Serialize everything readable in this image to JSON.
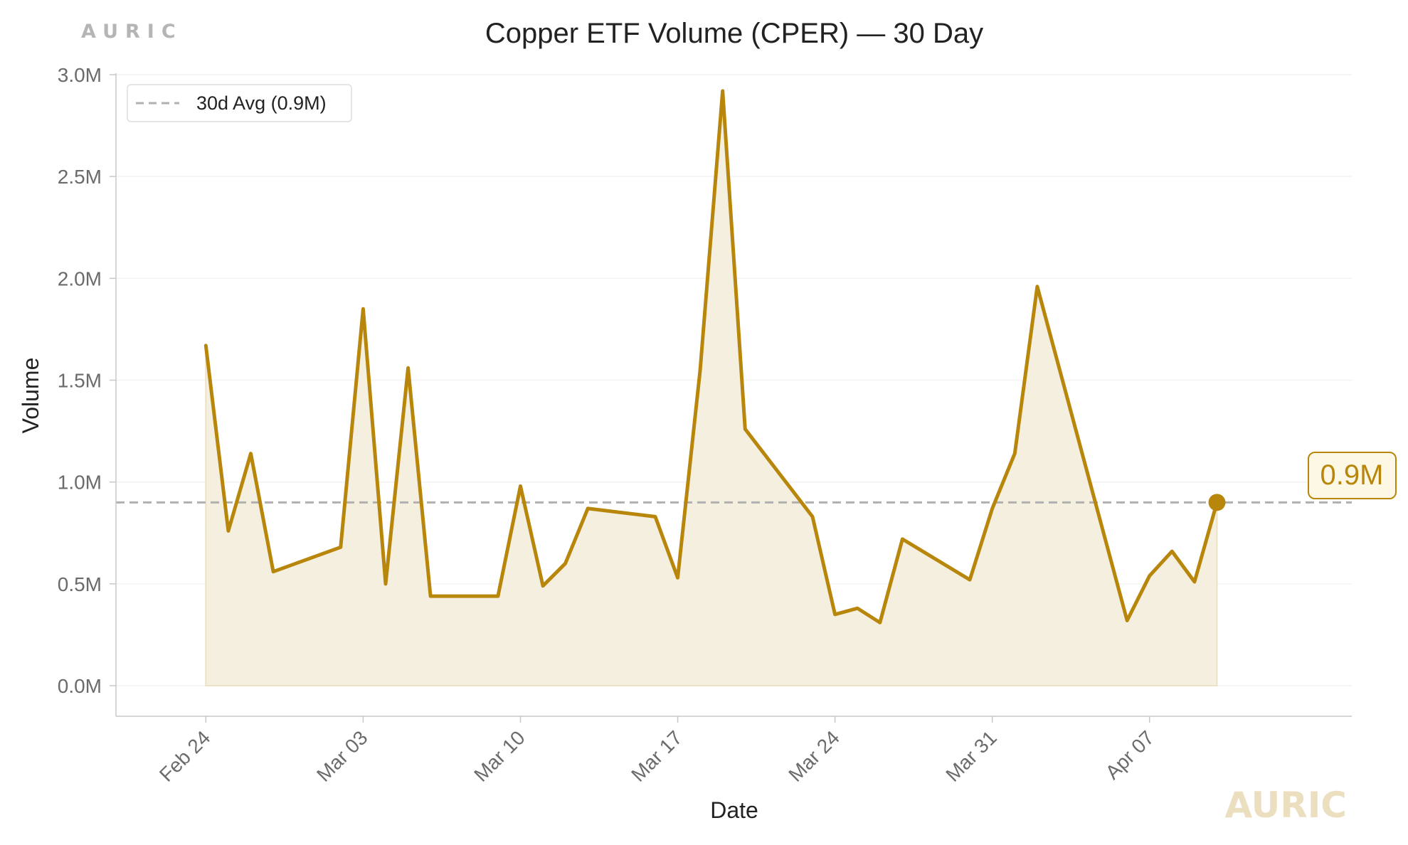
{
  "brand": {
    "top": "AURIC",
    "bottom": "AURIC"
  },
  "colors": {
    "series": "#b8860b",
    "fill": "#f5efdf",
    "avg_line": "#b0b0b0",
    "grid": "#f2f2f2",
    "axis": "#c8c8c8"
  },
  "chart_data": {
    "type": "line",
    "title": "Copper ETF Volume (CPER) — 30 Day",
    "xlabel": "Date",
    "ylabel": "Volume",
    "y_unit": "M",
    "ylim": [
      -0.15,
      3.0
    ],
    "yticks": [
      0.0,
      0.5,
      1.0,
      1.5,
      2.0,
      2.5,
      3.0
    ],
    "ytick_labels": [
      "0.0M",
      "0.5M",
      "1.0M",
      "1.5M",
      "2.0M",
      "2.5M",
      "3.0M"
    ],
    "xlim": [
      "2025-02-20",
      "2025-04-16"
    ],
    "xticks": [
      "2025-02-24",
      "2025-03-03",
      "2025-03-10",
      "2025-03-17",
      "2025-03-24",
      "2025-03-31",
      "2025-04-07"
    ],
    "xtick_labels": [
      "Feb 24",
      "Mar 03",
      "Mar 10",
      "Mar 17",
      "Mar 24",
      "Mar 31",
      "Apr 07"
    ],
    "grid": true,
    "legend": {
      "placement": "top-left",
      "entries": [
        "30d Avg (0.9M)"
      ]
    },
    "average": 0.9,
    "last_label": "0.9M",
    "series": [
      {
        "x": [
          "2025-02-24",
          "2025-02-25",
          "2025-02-26",
          "2025-02-27",
          "2025-03-02",
          "2025-03-03",
          "2025-03-04",
          "2025-03-05",
          "2025-03-06",
          "2025-03-09",
          "2025-03-10",
          "2025-03-11",
          "2025-03-12",
          "2025-03-13",
          "2025-03-16",
          "2025-03-17",
          "2025-03-18",
          "2025-03-19",
          "2025-03-20",
          "2025-03-23",
          "2025-03-24",
          "2025-03-25",
          "2025-03-26",
          "2025-03-27",
          "2025-03-30",
          "2025-03-31",
          "2025-04-01",
          "2025-04-02",
          "2025-04-06",
          "2025-04-07",
          "2025-04-08",
          "2025-04-09",
          "2025-04-10"
        ],
        "values": [
          1.67,
          0.76,
          1.14,
          0.56,
          0.68,
          1.85,
          0.5,
          1.56,
          0.44,
          0.44,
          0.98,
          0.49,
          0.6,
          0.87,
          0.83,
          0.53,
          1.55,
          2.92,
          1.26,
          0.83,
          0.35,
          0.38,
          0.31,
          0.72,
          0.52,
          0.87,
          1.14,
          1.96,
          0.32,
          0.54,
          0.66,
          0.51,
          0.9
        ]
      }
    ]
  }
}
